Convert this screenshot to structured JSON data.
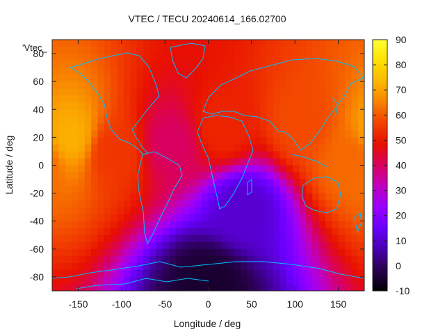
{
  "chart_data": {
    "type": "heatmap",
    "title": "VTEC / TECU 20240614_166.02700",
    "xlabel": "Longitude / deg",
    "ylabel": "Latitude / deg",
    "series_label": "'Vtec_",
    "xlim": [
      -180,
      180
    ],
    "ylim": [
      -90,
      90
    ],
    "x_ticks": [
      -150,
      -100,
      -50,
      0,
      50,
      100,
      150
    ],
    "y_ticks": [
      80,
      60,
      40,
      20,
      0,
      -20,
      -40,
      -60,
      -80
    ],
    "y_tick_labels": [
      "80",
      "60",
      "40",
      "20",
      "0",
      "-20",
      "-40",
      "-60",
      "-80"
    ],
    "colorbar": {
      "range": [
        -10,
        90
      ],
      "ticks": [
        90,
        80,
        70,
        60,
        50,
        40,
        30,
        20,
        10,
        0,
        -10
      ],
      "palette": [
        "#000000",
        "#2a0050",
        "#4a00b0",
        "#6a00ff",
        "#9a00ff",
        "#c000c0",
        "#d80060",
        "#e81000",
        "#f24000",
        "#f88000",
        "#fcb800",
        "#ffe000",
        "#ffff33"
      ]
    },
    "grid": false,
    "map_overlay": "coastlines",
    "coastline_color": "#00bfff",
    "regions": [
      {
        "lon": -160,
        "lat": 20,
        "value": 72
      },
      {
        "lon": -110,
        "lat": 10,
        "value": 55
      },
      {
        "lon": -40,
        "lat": 15,
        "value": 40
      },
      {
        "lon": 15,
        "lat": 25,
        "value": 52
      },
      {
        "lon": 110,
        "lat": 30,
        "value": 58
      },
      {
        "lon": 165,
        "lat": 5,
        "value": 62
      },
      {
        "lon": 40,
        "lat": -30,
        "value": 10
      },
      {
        "lon": 0,
        "lat": -85,
        "value": -5
      }
    ]
  }
}
